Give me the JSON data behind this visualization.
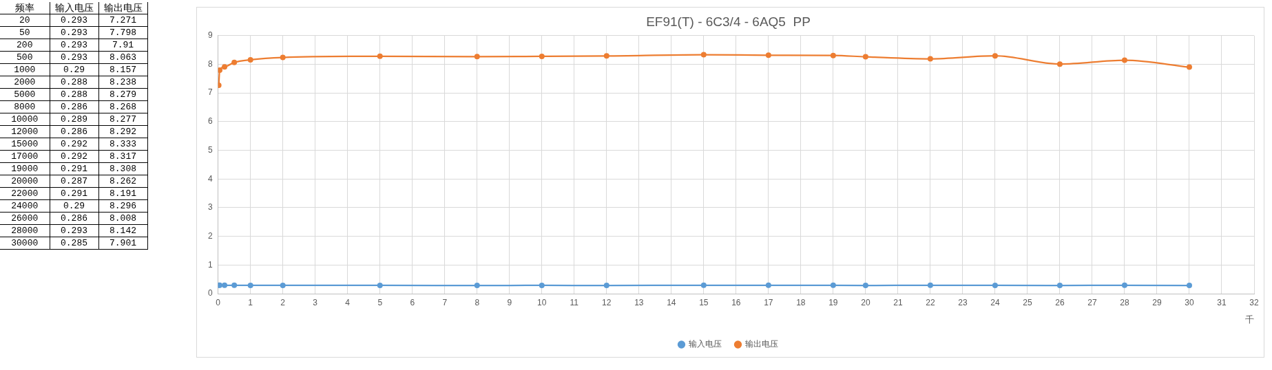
{
  "chart_data": [
    {
      "type": "other",
      "xlabel": "频率",
      "categories": [
        "20",
        "50",
        "200",
        "500",
        "1000",
        "2000",
        "5000",
        "8000",
        "10000",
        "12000",
        "15000",
        "17000",
        "19000",
        "20000",
        "22000",
        "24000",
        "26000",
        "28000",
        "30000"
      ],
      "series": [
        {
          "name": "输入电压",
          "values": [
            0.293,
            0.293,
            0.293,
            0.293,
            0.29,
            0.288,
            0.288,
            0.286,
            0.289,
            0.286,
            0.292,
            0.292,
            0.291,
            0.287,
            0.291,
            0.29,
            0.286,
            0.293,
            0.285
          ]
        },
        {
          "name": "输出电压",
          "values": [
            7.271,
            7.798,
            7.91,
            8.063,
            8.157,
            8.238,
            8.279,
            8.268,
            8.277,
            8.292,
            8.333,
            8.317,
            8.308,
            8.262,
            8.191,
            8.296,
            8.008,
            8.142,
            7.901
          ]
        }
      ],
      "data_labels": true
    },
    {
      "type": "line",
      "title": "EF91(T) - 6C3/4 - 6AQ5  PP",
      "xlabel": "千",
      "x": [
        0.02,
        0.05,
        0.2,
        0.5,
        1,
        2,
        5,
        8,
        10,
        12,
        15,
        17,
        19,
        20,
        22,
        24,
        26,
        28,
        30
      ],
      "series": [
        {
          "name": "输入电压",
          "color": "#5b9bd5",
          "values": [
            0.293,
            0.293,
            0.293,
            0.293,
            0.29,
            0.288,
            0.288,
            0.286,
            0.289,
            0.286,
            0.292,
            0.292,
            0.291,
            0.287,
            0.291,
            0.29,
            0.286,
            0.293,
            0.285
          ]
        },
        {
          "name": "输出电压",
          "color": "#ed7d31",
          "values": [
            7.271,
            7.798,
            7.91,
            8.063,
            8.157,
            8.238,
            8.279,
            8.268,
            8.277,
            8.292,
            8.333,
            8.317,
            8.308,
            8.262,
            8.191,
            8.296,
            8.008,
            8.142,
            7.901
          ]
        }
      ],
      "xlim": [
        0,
        32
      ],
      "xticks": [
        0,
        1,
        2,
        3,
        4,
        5,
        6,
        7,
        8,
        9,
        10,
        11,
        12,
        13,
        14,
        15,
        16,
        17,
        18,
        19,
        20,
        21,
        22,
        23,
        24,
        25,
        26,
        27,
        28,
        29,
        30,
        31,
        32
      ],
      "ylim": [
        0,
        9
      ],
      "yticks": [
        0,
        1,
        2,
        3,
        4,
        5,
        6,
        7,
        8,
        9
      ],
      "grid": true,
      "legend": "bottom",
      "marker": "circle",
      "line_style": "solid"
    }
  ]
}
